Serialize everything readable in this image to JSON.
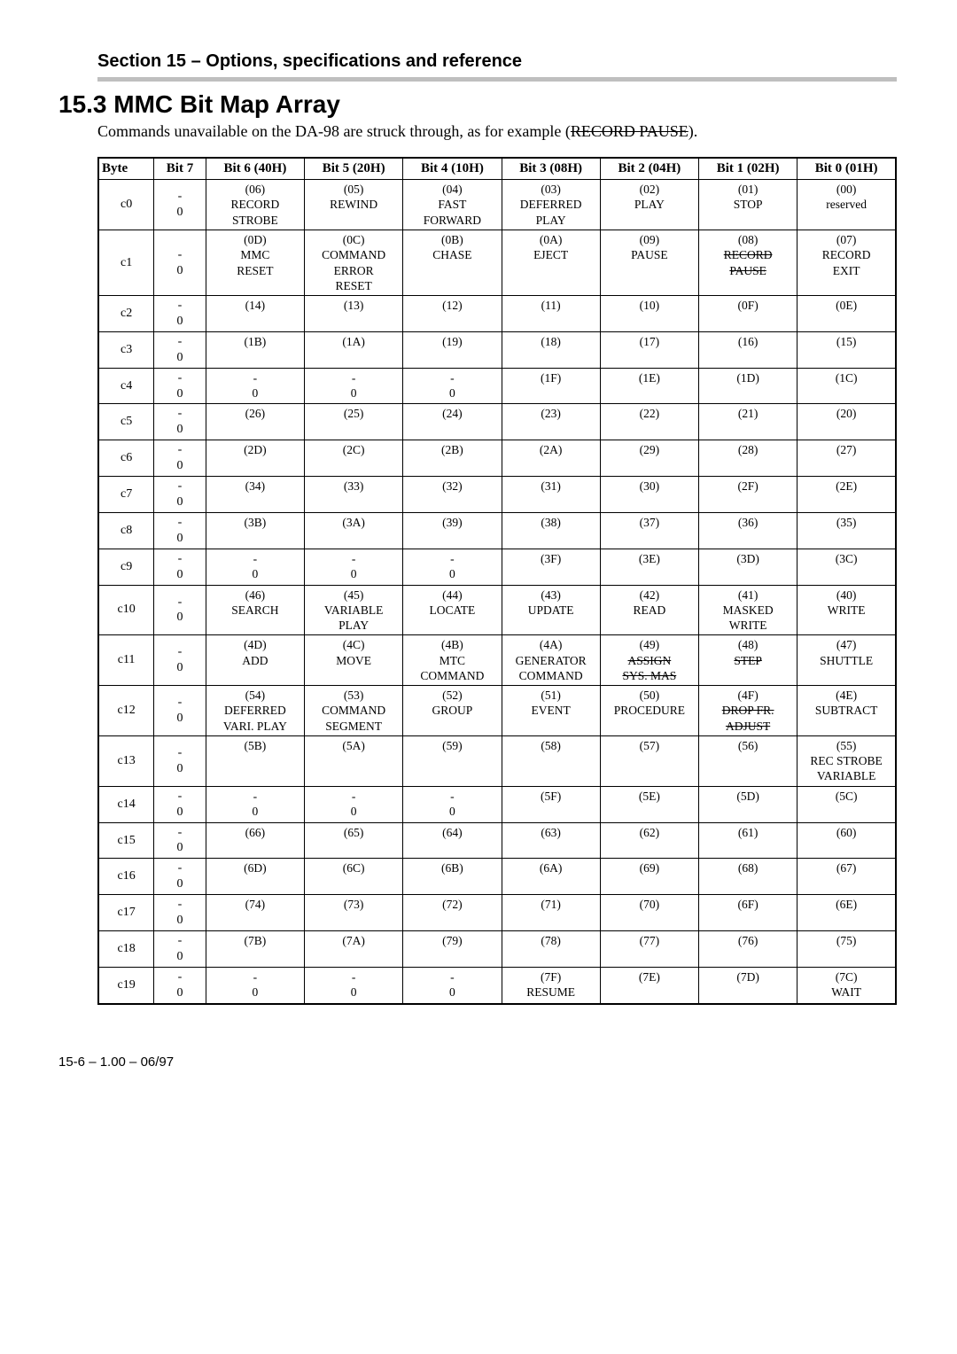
{
  "header": {
    "section_title": "Section 15 – Options, specifications and reference",
    "h1": "15.3 MMC Bit Map Array",
    "intro_pre": "Commands unavailable on the DA-98 are struck through, as for example (",
    "intro_strike": "RECORD PAUSE",
    "intro_post": ")."
  },
  "table": {
    "headers": [
      "Byte",
      "Bit 7",
      "Bit 6 (40H)",
      "Bit 5 (20H)",
      "Bit 4 (10H)",
      "Bit 3 (08H)",
      "Bit 2 (04H)",
      "Bit 1 (02H)",
      "Bit 0 (01H)"
    ],
    "rows": [
      {
        "byte": "c0",
        "bit7": {
          "l1": "-",
          "l2": "0"
        },
        "cells": [
          {
            "hex": "(06)",
            "lines": [
              "RECORD",
              "STROBE"
            ]
          },
          {
            "hex": "(05)",
            "lines": [
              "REWIND"
            ]
          },
          {
            "hex": "(04)",
            "lines": [
              "FAST",
              "FORWARD"
            ]
          },
          {
            "hex": "(03)",
            "lines": [
              "DEFERRED",
              "PLAY"
            ]
          },
          {
            "hex": "(02)",
            "lines": [
              "PLAY"
            ]
          },
          {
            "hex": "(01)",
            "lines": [
              "STOP"
            ]
          },
          {
            "hex": "(00)",
            "lines": [
              "reserved"
            ]
          }
        ]
      },
      {
        "byte": "c1",
        "bit7": {
          "l1": "-",
          "l2": "0"
        },
        "cells": [
          {
            "hex": "(0D)",
            "lines": [
              "MMC",
              "RESET"
            ]
          },
          {
            "hex": "(0C)",
            "lines": [
              "COMMAND",
              "ERROR",
              "RESET"
            ]
          },
          {
            "hex": "(0B)",
            "lines": [
              "CHASE"
            ]
          },
          {
            "hex": "(0A)",
            "lines": [
              "EJECT"
            ]
          },
          {
            "hex": "(09)",
            "lines": [
              "PAUSE"
            ]
          },
          {
            "hex": "(08)",
            "lines": [
              "RECORD",
              "PAUSE"
            ],
            "strike": [
              0,
              1
            ]
          },
          {
            "hex": "(07)",
            "lines": [
              "RECORD",
              "EXIT"
            ]
          }
        ]
      },
      {
        "byte": "c2",
        "bit7": {
          "l1": "-",
          "l2": "0"
        },
        "cells": [
          {
            "hex": "(14)",
            "lines": []
          },
          {
            "hex": "(13)",
            "lines": []
          },
          {
            "hex": "(12)",
            "lines": []
          },
          {
            "hex": "(11)",
            "lines": []
          },
          {
            "hex": "(10)",
            "lines": []
          },
          {
            "hex": "(0F)",
            "lines": []
          },
          {
            "hex": "(0E)",
            "lines": []
          }
        ]
      },
      {
        "byte": "c3",
        "bit7": {
          "l1": "-",
          "l2": "0"
        },
        "cells": [
          {
            "hex": "(1B)",
            "lines": []
          },
          {
            "hex": "(1A)",
            "lines": []
          },
          {
            "hex": "(19)",
            "lines": []
          },
          {
            "hex": "(18)",
            "lines": []
          },
          {
            "hex": "(17)",
            "lines": []
          },
          {
            "hex": "(16)",
            "lines": []
          },
          {
            "hex": "(15)",
            "lines": []
          }
        ]
      },
      {
        "byte": "c4",
        "bit7": {
          "l1": "-",
          "l2": "0"
        },
        "cells": [
          {
            "hex": "-",
            "lines": [
              "0"
            ]
          },
          {
            "hex": "-",
            "lines": [
              "0"
            ]
          },
          {
            "hex": "-",
            "lines": [
              "0"
            ]
          },
          {
            "hex": "(1F)",
            "lines": []
          },
          {
            "hex": "(1E)",
            "lines": []
          },
          {
            "hex": "(1D)",
            "lines": []
          },
          {
            "hex": "(1C)",
            "lines": []
          }
        ]
      },
      {
        "byte": "c5",
        "bit7": {
          "l1": "-",
          "l2": "0"
        },
        "cells": [
          {
            "hex": "(26)",
            "lines": []
          },
          {
            "hex": "(25)",
            "lines": []
          },
          {
            "hex": "(24)",
            "lines": []
          },
          {
            "hex": "(23)",
            "lines": []
          },
          {
            "hex": "(22)",
            "lines": []
          },
          {
            "hex": "(21)",
            "lines": []
          },
          {
            "hex": "(20)",
            "lines": []
          }
        ]
      },
      {
        "byte": "c6",
        "bit7": {
          "l1": "-",
          "l2": "0"
        },
        "cells": [
          {
            "hex": "(2D)",
            "lines": []
          },
          {
            "hex": "(2C)",
            "lines": []
          },
          {
            "hex": "(2B)",
            "lines": []
          },
          {
            "hex": "(2A)",
            "lines": []
          },
          {
            "hex": "(29)",
            "lines": []
          },
          {
            "hex": "(28)",
            "lines": []
          },
          {
            "hex": "(27)",
            "lines": []
          }
        ]
      },
      {
        "byte": "c7",
        "bit7": {
          "l1": "-",
          "l2": "0"
        },
        "cells": [
          {
            "hex": "(34)",
            "lines": []
          },
          {
            "hex": "(33)",
            "lines": []
          },
          {
            "hex": "(32)",
            "lines": []
          },
          {
            "hex": "(31)",
            "lines": []
          },
          {
            "hex": "(30)",
            "lines": []
          },
          {
            "hex": "(2F)",
            "lines": []
          },
          {
            "hex": "(2E)",
            "lines": []
          }
        ]
      },
      {
        "byte": "c8",
        "bit7": {
          "l1": "-",
          "l2": "0"
        },
        "cells": [
          {
            "hex": "(3B)",
            "lines": []
          },
          {
            "hex": "(3A)",
            "lines": []
          },
          {
            "hex": "(39)",
            "lines": []
          },
          {
            "hex": "(38)",
            "lines": []
          },
          {
            "hex": "(37)",
            "lines": []
          },
          {
            "hex": "(36)",
            "lines": []
          },
          {
            "hex": "(35)",
            "lines": []
          }
        ]
      },
      {
        "byte": "c9",
        "bit7": {
          "l1": "-",
          "l2": "0"
        },
        "cells": [
          {
            "hex": "-",
            "lines": [
              "0"
            ]
          },
          {
            "hex": "-",
            "lines": [
              "0"
            ]
          },
          {
            "hex": "-",
            "lines": [
              "0"
            ]
          },
          {
            "hex": "(3F)",
            "lines": []
          },
          {
            "hex": "(3E)",
            "lines": []
          },
          {
            "hex": "(3D)",
            "lines": []
          },
          {
            "hex": "(3C)",
            "lines": []
          }
        ]
      },
      {
        "byte": "c10",
        "bit7": {
          "l1": "-",
          "l2": "0"
        },
        "cells": [
          {
            "hex": "(46)",
            "lines": [
              "SEARCH"
            ]
          },
          {
            "hex": "(45)",
            "lines": [
              "VARIABLE",
              "PLAY"
            ]
          },
          {
            "hex": "(44)",
            "lines": [
              "LOCATE"
            ]
          },
          {
            "hex": "(43)",
            "lines": [
              "UPDATE"
            ]
          },
          {
            "hex": "(42)",
            "lines": [
              "READ"
            ]
          },
          {
            "hex": "(41)",
            "lines": [
              "MASKED",
              "WRITE"
            ]
          },
          {
            "hex": "(40)",
            "lines": [
              "WRITE"
            ]
          }
        ]
      },
      {
        "byte": "c11",
        "bit7": {
          "l1": "-",
          "l2": "0"
        },
        "cells": [
          {
            "hex": "(4D)",
            "lines": [
              "ADD"
            ]
          },
          {
            "hex": "(4C)",
            "lines": [
              "MOVE"
            ]
          },
          {
            "hex": "(4B)",
            "lines": [
              "MTC",
              "COMMAND"
            ]
          },
          {
            "hex": "(4A)",
            "lines": [
              "GENERATOR",
              "COMMAND"
            ]
          },
          {
            "hex": "(49)",
            "lines": [
              "ASSIGN",
              "SYS. MAS"
            ],
            "strike": [
              0,
              1
            ]
          },
          {
            "hex": "(48)",
            "lines": [
              "STEP"
            ],
            "strike": [
              0
            ]
          },
          {
            "hex": "(47)",
            "lines": [
              "SHUTTLE"
            ]
          }
        ]
      },
      {
        "byte": "c12",
        "bit7": {
          "l1": "-",
          "l2": "0"
        },
        "cells": [
          {
            "hex": "(54)",
            "lines": [
              "DEFERRED",
              "VARI. PLAY"
            ]
          },
          {
            "hex": "(53)",
            "lines": [
              "COMMAND",
              "SEGMENT"
            ]
          },
          {
            "hex": "(52)",
            "lines": [
              "GROUP"
            ]
          },
          {
            "hex": "(51)",
            "lines": [
              "EVENT"
            ]
          },
          {
            "hex": "(50)",
            "lines": [
              "PROCEDURE"
            ]
          },
          {
            "hex": "(4F)",
            "lines": [
              "DROP FR.",
              "ADJUST"
            ],
            "strike": [
              0,
              1
            ]
          },
          {
            "hex": "(4E)",
            "lines": [
              "SUBTRACT"
            ]
          }
        ]
      },
      {
        "byte": "c13",
        "bit7": {
          "l1": "-",
          "l2": "0"
        },
        "cells": [
          {
            "hex": "(5B)",
            "lines": []
          },
          {
            "hex": "(5A)",
            "lines": []
          },
          {
            "hex": "(59)",
            "lines": []
          },
          {
            "hex": "(58)",
            "lines": []
          },
          {
            "hex": "(57)",
            "lines": []
          },
          {
            "hex": "(56)",
            "lines": []
          },
          {
            "hex": "(55)",
            "lines": [
              "REC STROBE",
              "VARIABLE"
            ]
          }
        ]
      },
      {
        "byte": "c14",
        "bit7": {
          "l1": "-",
          "l2": "0"
        },
        "cells": [
          {
            "hex": "-",
            "lines": [
              "0"
            ]
          },
          {
            "hex": "-",
            "lines": [
              "0"
            ]
          },
          {
            "hex": "-",
            "lines": [
              "0"
            ]
          },
          {
            "hex": "(5F)",
            "lines": []
          },
          {
            "hex": "(5E)",
            "lines": []
          },
          {
            "hex": "(5D)",
            "lines": []
          },
          {
            "hex": "(5C)",
            "lines": []
          }
        ]
      },
      {
        "byte": "c15",
        "bit7": {
          "l1": "-",
          "l2": "0"
        },
        "cells": [
          {
            "hex": "(66)",
            "lines": []
          },
          {
            "hex": "(65)",
            "lines": []
          },
          {
            "hex": "(64)",
            "lines": []
          },
          {
            "hex": "(63)",
            "lines": []
          },
          {
            "hex": "(62)",
            "lines": []
          },
          {
            "hex": "(61)",
            "lines": []
          },
          {
            "hex": "(60)",
            "lines": []
          }
        ]
      },
      {
        "byte": "c16",
        "bit7": {
          "l1": "-",
          "l2": "0"
        },
        "cells": [
          {
            "hex": "(6D)",
            "lines": []
          },
          {
            "hex": "(6C)",
            "lines": []
          },
          {
            "hex": "(6B)",
            "lines": []
          },
          {
            "hex": "(6A)",
            "lines": []
          },
          {
            "hex": "(69)",
            "lines": []
          },
          {
            "hex": "(68)",
            "lines": []
          },
          {
            "hex": "(67)",
            "lines": []
          }
        ]
      },
      {
        "byte": "c17",
        "bit7": {
          "l1": "-",
          "l2": "0"
        },
        "cells": [
          {
            "hex": "(74)",
            "lines": []
          },
          {
            "hex": "(73)",
            "lines": []
          },
          {
            "hex": "(72)",
            "lines": []
          },
          {
            "hex": "(71)",
            "lines": []
          },
          {
            "hex": "(70)",
            "lines": []
          },
          {
            "hex": "(6F)",
            "lines": []
          },
          {
            "hex": "(6E)",
            "lines": []
          }
        ]
      },
      {
        "byte": "c18",
        "bit7": {
          "l1": "-",
          "l2": "0"
        },
        "cells": [
          {
            "hex": "(7B)",
            "lines": []
          },
          {
            "hex": "(7A)",
            "lines": []
          },
          {
            "hex": "(79)",
            "lines": []
          },
          {
            "hex": "(78)",
            "lines": []
          },
          {
            "hex": "(77)",
            "lines": []
          },
          {
            "hex": "(76)",
            "lines": []
          },
          {
            "hex": "(75)",
            "lines": []
          }
        ]
      },
      {
        "byte": "c19",
        "bit7": {
          "l1": "-",
          "l2": "0"
        },
        "cells": [
          {
            "hex": "-",
            "lines": [
              "0"
            ]
          },
          {
            "hex": "-",
            "lines": [
              "0"
            ]
          },
          {
            "hex": "-",
            "lines": [
              "0"
            ]
          },
          {
            "hex": "(7F)",
            "lines": [
              "RESUME"
            ]
          },
          {
            "hex": "(7E)",
            "lines": []
          },
          {
            "hex": "(7D)",
            "lines": []
          },
          {
            "hex": "(7C)",
            "lines": [
              "WAIT"
            ]
          }
        ]
      }
    ]
  },
  "footer": "15-6 – 1.00 – 06/97"
}
